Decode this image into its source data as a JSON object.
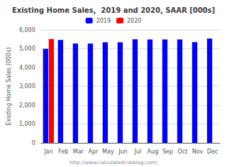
{
  "chart_data": {
    "type": "bar",
    "title": "Existing Home Sales,  2019 and 2020, SAAR [000s]",
    "ylabel": "Existing Home Sales (000s)",
    "categories": [
      "Jan",
      "Feb",
      "Mar",
      "Apr",
      "May",
      "Jun",
      "Jul",
      "Aug",
      "Sep",
      "Oct",
      "Nov",
      "Dec"
    ],
    "series": [
      {
        "name": "2019",
        "color": "#0000ff",
        "values": [
          4990,
          5460,
          5270,
          5270,
          5340,
          5340,
          5500,
          5490,
          5490,
          5490,
          5350,
          5540
        ]
      },
      {
        "name": "2020",
        "color": "#ff0000",
        "values": [
          5510,
          null,
          null,
          null,
          null,
          null,
          null,
          null,
          null,
          null,
          null,
          null
        ]
      }
    ],
    "ylim": [
      0,
      6000
    ],
    "yticks": [
      0,
      {
        "value": 1000,
        "label": "1,000"
      },
      {
        "value": 2000,
        "label": "2,000"
      },
      {
        "value": 3000,
        "label": "3,000"
      },
      {
        "value": 4000,
        "label": "4,000"
      },
      {
        "value": 5000,
        "label": "5,000"
      },
      {
        "value": 6000,
        "label": "6,000"
      }
    ],
    "grid": true,
    "legend": "top",
    "annotation": "http://www.calculatedriskblog.com/"
  }
}
